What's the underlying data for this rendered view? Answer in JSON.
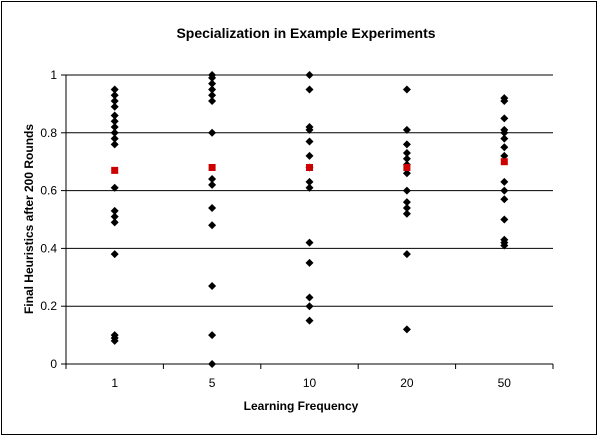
{
  "chart_data": {
    "type": "scatter",
    "title": "Specialization in Example Experiments",
    "xlabel": "Learning Frequency",
    "ylabel": "Final Heuristics after 200 Rounds",
    "categories": [
      "1",
      "5",
      "10",
      "20",
      "50"
    ],
    "ylim": [
      0,
      1
    ],
    "yticks": [
      "0",
      "0.2",
      "0.4",
      "0.6",
      "0.8",
      "1"
    ],
    "grid": true,
    "legend": "none",
    "series": [
      {
        "color": "#000000",
        "marker": "diamond",
        "points": [
          {
            "x": "1",
            "values": [
              0.95,
              0.93,
              0.91,
              0.89,
              0.86,
              0.84,
              0.82,
              0.8,
              0.78,
              0.76,
              0.61,
              0.53,
              0.51,
              0.49,
              0.38,
              0.1,
              0.09,
              0.08
            ]
          },
          {
            "x": "5",
            "values": [
              1.0,
              0.99,
              0.97,
              0.95,
              0.93,
              0.91,
              0.8,
              0.64,
              0.62,
              0.54,
              0.48,
              0.27,
              0.1,
              0.0
            ]
          },
          {
            "x": "10",
            "values": [
              1.0,
              0.95,
              0.82,
              0.81,
              0.77,
              0.72,
              0.68,
              0.63,
              0.61,
              0.42,
              0.35,
              0.23,
              0.2,
              0.15
            ]
          },
          {
            "x": "20",
            "values": [
              0.95,
              0.81,
              0.76,
              0.73,
              0.71,
              0.69,
              0.66,
              0.6,
              0.56,
              0.54,
              0.52,
              0.38,
              0.12
            ]
          },
          {
            "x": "50",
            "values": [
              0.92,
              0.91,
              0.85,
              0.81,
              0.8,
              0.78,
              0.75,
              0.72,
              0.63,
              0.6,
              0.57,
              0.5,
              0.43,
              0.42,
              0.41
            ]
          }
        ]
      },
      {
        "color": "#cc0000",
        "marker": "square",
        "points": [
          {
            "x": "1",
            "values": [
              0.67
            ]
          },
          {
            "x": "5",
            "values": [
              0.68
            ]
          },
          {
            "x": "10",
            "values": [
              0.68
            ]
          },
          {
            "x": "20",
            "values": [
              0.68
            ]
          },
          {
            "x": "50",
            "values": [
              0.7
            ]
          }
        ]
      }
    ]
  }
}
